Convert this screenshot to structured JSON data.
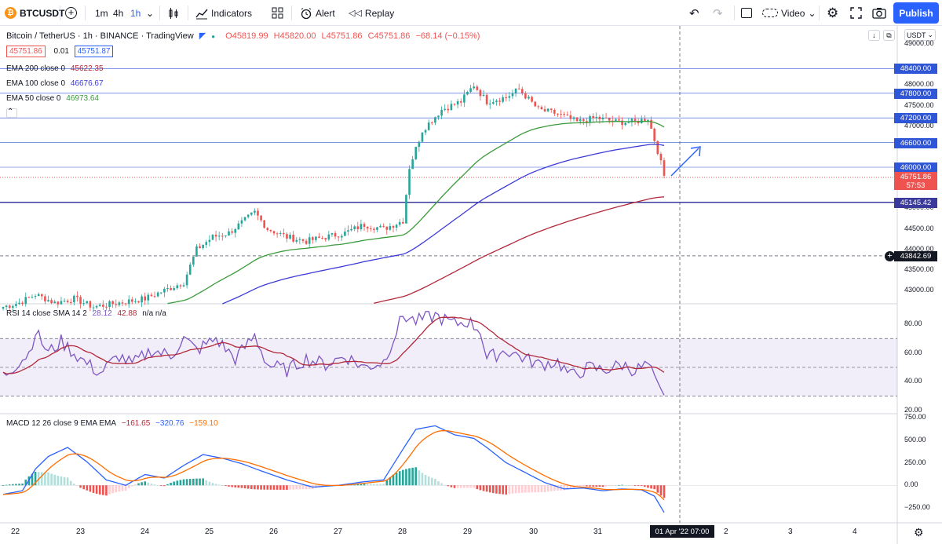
{
  "toolbar": {
    "symbol": "BTCUSDT",
    "intervals": [
      "1m",
      "4h",
      "1h"
    ],
    "indicators_label": "Indicators",
    "alert_label": "Alert",
    "replay_label": "Replay",
    "video_label": "Video",
    "publish_label": "Publish"
  },
  "legend": {
    "title": "Bitcoin / TetherUS · 1h · BINANCE · TradingView",
    "ohlc": {
      "open": "O45819.99",
      "high": "H45820.00",
      "low": "L45751.86",
      "close": "C45751.86",
      "change": "−68.14 (−0.15%)"
    },
    "sell_price": "45751.86",
    "spread": "0.01",
    "buy_price": "45751.87",
    "ema200": {
      "label": "EMA 200 close 0",
      "value": "45622.35",
      "color": "#b2283a"
    },
    "ema100": {
      "label": "EMA 100 close 0",
      "value": "46676.67",
      "color": "#3d3ad6"
    },
    "ema50": {
      "label": "EMA 50 close 0",
      "value": "46973.64",
      "color": "#3b9a3b"
    }
  },
  "currency": "USDT",
  "price_axis": {
    "ticks": [
      "49000.00",
      "48000.00",
      "47500.00",
      "47000.00",
      "46500.00",
      "45500.00",
      "45000.00",
      "44500.00",
      "44000.00",
      "43500.00",
      "43000.00"
    ],
    "hlines": [
      {
        "value": "48400.00",
        "color": "#2f56d6"
      },
      {
        "value": "47800.00",
        "color": "#2f56d6"
      },
      {
        "value": "47200.00",
        "color": "#2f56d6"
      },
      {
        "value": "46600.00",
        "color": "#2f56d6"
      },
      {
        "value": "46000.00",
        "color": "#2f56d6"
      },
      {
        "value": "45145.42",
        "color": "#3a3a9c"
      }
    ],
    "last_price": "45751.86",
    "countdown": "57:53",
    "crosshair_price": "43842.69"
  },
  "rsi": {
    "legend": "RSI 14 close SMA 14 2",
    "v1": "28.12",
    "v2": "42.88",
    "v3": "n/a n/a",
    "ticks": [
      "80.00",
      "60.00",
      "40.00",
      "20.00"
    ]
  },
  "macd": {
    "legend": "MACD 12 26 close 9 EMA EMA",
    "hist": "−161.65",
    "macd": "−320.76",
    "signal": "−159.10",
    "ticks": [
      "750.00",
      "500.00",
      "250.00",
      "0.00",
      "−250.00"
    ]
  },
  "time_axis": {
    "labels": [
      "22",
      "23",
      "24",
      "25",
      "26",
      "27",
      "28",
      "29",
      "30",
      "31",
      "2",
      "3",
      "4"
    ],
    "crosshair_time": "01 Apr '22  07:00"
  },
  "colors": {
    "accent": "#2962ff",
    "up": "#26a69a",
    "down": "#ef5350",
    "rsi_line": "#7e57c2",
    "macd_line": "#2962ff",
    "signal_line": "#ff6d00"
  }
}
